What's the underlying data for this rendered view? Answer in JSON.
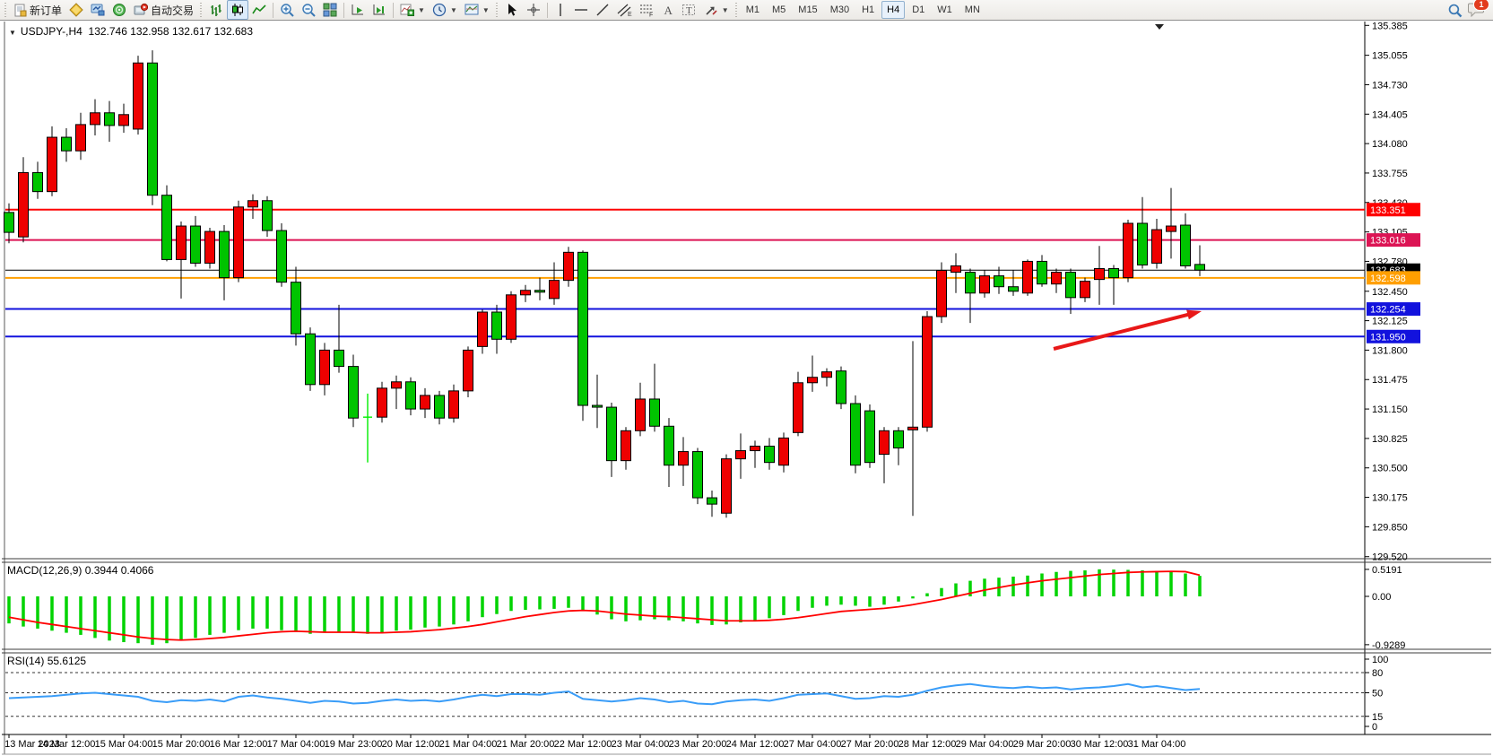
{
  "toolbar": {
    "new_order_label": "新订单",
    "auto_trading_label": "自动交易",
    "timeframes": [
      "M1",
      "M5",
      "M15",
      "M30",
      "H1",
      "H4",
      "D1",
      "W1",
      "MN"
    ],
    "active_timeframe": "H4",
    "notification_count": "1"
  },
  "chart": {
    "symbol_period": "USDJPY-,H4",
    "ohlc_text": "132.746 132.958 132.617 132.683",
    "price_ticks": [
      "135.385",
      "135.055",
      "134.730",
      "134.405",
      "134.080",
      "133.755",
      "133.430",
      "133.105",
      "132.780",
      "132.450",
      "132.125",
      "131.800",
      "131.475",
      "131.150",
      "130.825",
      "130.500",
      "130.175",
      "129.850",
      "129.520"
    ],
    "hlines": [
      {
        "price": 133.351,
        "badge": "133.351",
        "color": "#fe0000",
        "width": 2
      },
      {
        "price": 133.016,
        "badge": "133.016",
        "color": "#dc1454",
        "width": 2
      },
      {
        "price": 132.683,
        "badge": "132.683",
        "color": "#000000",
        "width": 1
      },
      {
        "price": 132.598,
        "badge": "132.598",
        "color": "#ff9f00",
        "width": 2
      },
      {
        "price": 132.254,
        "badge": "132.254",
        "color": "#1212dd",
        "width": 2
      },
      {
        "price": 131.95,
        "badge": "131.950",
        "color": "#1212dd",
        "width": 2
      }
    ],
    "annotations": [
      {
        "type": "arrow",
        "from": [
          1175,
          389
        ],
        "to": [
          1340,
          347
        ],
        "color": "#e81818"
      }
    ]
  },
  "chart_data": {
    "type": "candlestick",
    "symbol": "USDJPY-",
    "timeframe": "H4",
    "title": "USDJPY-,H4 132.746 132.958 132.617 132.683",
    "current_bar": {
      "open": 132.746,
      "high": 132.958,
      "low": 132.617,
      "close": 132.683
    },
    "y_range": [
      129.4,
      135.45
    ],
    "grid": false,
    "colors": {
      "bull": "#ee0000",
      "bear": "#00c400",
      "doji": "#00ee00",
      "macd_bar": "#00d300",
      "macd_signal": "#ff0000",
      "rsi_line": "#3a9df8"
    },
    "x_tick_every": 4,
    "x_tick_labels": [
      "13 Mar 2023",
      "14 Mar 12:00",
      "15 Mar 04:00",
      "15 Mar 20:00",
      "16 Mar 12:00",
      "17 Mar 04:00",
      "19 Mar 23:00",
      "20 Mar 12:00",
      "21 Mar 04:00",
      "21 Mar 20:00",
      "22 Mar 12:00",
      "23 Mar 04:00",
      "23 Mar 20:00",
      "24 Mar 12:00",
      "27 Mar 04:00",
      "27 Mar 20:00",
      "28 Mar 12:00",
      "29 Mar 04:00",
      "29 Mar 20:00",
      "30 Mar 12:00",
      "31 Mar 04:00"
    ],
    "doji_indices": [
      25
    ],
    "candles": [
      [
        133.32,
        133.42,
        132.98,
        133.1
      ],
      [
        133.05,
        133.93,
        132.99,
        133.76
      ],
      [
        133.76,
        133.88,
        133.47,
        133.55
      ],
      [
        133.55,
        134.27,
        133.5,
        134.15
      ],
      [
        134.15,
        134.25,
        133.88,
        134.0
      ],
      [
        134.0,
        134.42,
        133.9,
        134.29
      ],
      [
        134.29,
        134.57,
        134.17,
        134.42
      ],
      [
        134.42,
        134.55,
        134.1,
        134.28
      ],
      [
        134.28,
        134.52,
        134.2,
        134.4
      ],
      [
        134.24,
        135.05,
        134.18,
        134.97
      ],
      [
        134.97,
        135.11,
        133.4,
        133.51
      ],
      [
        133.51,
        133.62,
        132.78,
        132.8
      ],
      [
        132.8,
        133.22,
        132.37,
        133.17
      ],
      [
        133.17,
        133.28,
        132.72,
        132.76
      ],
      [
        132.76,
        133.15,
        132.7,
        133.11
      ],
      [
        133.11,
        133.18,
        132.35,
        132.6
      ],
      [
        132.6,
        133.45,
        132.55,
        133.38
      ],
      [
        133.38,
        133.52,
        133.25,
        133.45
      ],
      [
        133.45,
        133.5,
        133.05,
        133.12
      ],
      [
        133.12,
        133.2,
        132.5,
        132.55
      ],
      [
        132.55,
        132.72,
        131.85,
        131.98
      ],
      [
        131.98,
        132.05,
        131.35,
        131.42
      ],
      [
        131.42,
        131.88,
        131.3,
        131.8
      ],
      [
        131.8,
        132.3,
        131.55,
        131.62
      ],
      [
        131.62,
        131.75,
        130.95,
        131.05
      ],
      [
        131.05,
        131.32,
        130.56,
        131.06
      ],
      [
        131.06,
        131.45,
        131.0,
        131.38
      ],
      [
        131.38,
        131.52,
        131.15,
        131.45
      ],
      [
        131.45,
        131.5,
        131.08,
        131.15
      ],
      [
        131.15,
        131.38,
        131.05,
        131.3
      ],
      [
        131.3,
        131.35,
        130.98,
        131.05
      ],
      [
        131.05,
        131.42,
        131.0,
        131.35
      ],
      [
        131.35,
        131.84,
        131.28,
        131.8
      ],
      [
        131.84,
        132.25,
        131.76,
        132.22
      ],
      [
        132.22,
        132.3,
        131.76,
        131.92
      ],
      [
        131.92,
        132.45,
        131.88,
        132.41
      ],
      [
        132.41,
        132.52,
        132.33,
        132.46
      ],
      [
        132.46,
        132.6,
        132.35,
        132.44
      ],
      [
        132.37,
        132.77,
        132.3,
        132.57
      ],
      [
        132.57,
        132.94,
        132.5,
        132.88
      ],
      [
        132.88,
        132.9,
        131.02,
        131.19
      ],
      [
        131.19,
        131.53,
        130.94,
        131.17
      ],
      [
        131.17,
        131.22,
        130.4,
        130.58
      ],
      [
        130.58,
        130.95,
        130.48,
        130.91
      ],
      [
        130.91,
        131.44,
        130.85,
        131.26
      ],
      [
        131.26,
        131.65,
        130.9,
        130.96
      ],
      [
        130.96,
        131.05,
        130.29,
        130.53
      ],
      [
        130.53,
        130.84,
        130.3,
        130.68
      ],
      [
        130.68,
        130.72,
        130.1,
        130.17
      ],
      [
        130.17,
        130.25,
        129.96,
        130.1
      ],
      [
        130.0,
        130.65,
        129.95,
        130.6
      ],
      [
        130.6,
        130.88,
        130.38,
        130.69
      ],
      [
        130.69,
        130.8,
        130.5,
        130.74
      ],
      [
        130.74,
        130.83,
        130.48,
        130.56
      ],
      [
        130.53,
        130.89,
        130.45,
        130.83
      ],
      [
        130.89,
        131.56,
        130.85,
        131.44
      ],
      [
        131.44,
        131.74,
        131.34,
        131.5
      ],
      [
        131.5,
        131.6,
        131.4,
        131.56
      ],
      [
        131.57,
        131.62,
        131.15,
        131.21
      ],
      [
        131.21,
        131.3,
        130.44,
        130.53
      ],
      [
        131.13,
        131.2,
        130.5,
        130.56
      ],
      [
        130.65,
        130.95,
        130.33,
        130.91
      ],
      [
        130.91,
        130.95,
        130.53,
        130.72
      ],
      [
        130.92,
        131.9,
        129.97,
        130.95
      ],
      [
        130.95,
        132.23,
        130.9,
        132.17
      ],
      [
        132.17,
        132.77,
        132.1,
        132.68
      ],
      [
        132.66,
        132.87,
        132.43,
        132.73
      ],
      [
        132.66,
        132.7,
        132.1,
        132.43
      ],
      [
        132.43,
        132.68,
        132.38,
        132.62
      ],
      [
        132.62,
        132.72,
        132.42,
        132.5
      ],
      [
        132.5,
        132.68,
        132.4,
        132.45
      ],
      [
        132.43,
        132.8,
        132.4,
        132.78
      ],
      [
        132.78,
        132.85,
        132.5,
        132.53
      ],
      [
        132.53,
        132.7,
        132.43,
        132.66
      ],
      [
        132.66,
        132.7,
        132.2,
        132.38
      ],
      [
        132.38,
        132.6,
        132.33,
        132.56
      ],
      [
        132.58,
        132.95,
        132.3,
        132.7
      ],
      [
        132.7,
        132.74,
        132.3,
        132.6
      ],
      [
        132.6,
        133.24,
        132.55,
        133.2
      ],
      [
        133.2,
        133.49,
        132.7,
        132.74
      ],
      [
        132.76,
        133.25,
        132.7,
        133.13
      ],
      [
        133.11,
        133.59,
        132.81,
        133.17
      ],
      [
        133.18,
        133.31,
        132.7,
        132.73
      ],
      [
        132.746,
        132.958,
        132.617,
        132.683
      ]
    ],
    "indicators": {
      "macd": {
        "label": "MACD(12,26,9)",
        "display": "0.3944 0.4066",
        "axis_ticks": [
          "0.5191",
          "0.00",
          "-0.9289"
        ],
        "values": [
          -0.52,
          -0.58,
          -0.62,
          -0.66,
          -0.7,
          -0.74,
          -0.8,
          -0.85,
          -0.88,
          -0.9,
          -0.93,
          -0.9,
          -0.85,
          -0.8,
          -0.74,
          -0.7,
          -0.65,
          -0.62,
          -0.62,
          -0.65,
          -0.68,
          -0.72,
          -0.7,
          -0.68,
          -0.7,
          -0.72,
          -0.7,
          -0.66,
          -0.64,
          -0.6,
          -0.58,
          -0.54,
          -0.48,
          -0.4,
          -0.34,
          -0.28,
          -0.26,
          -0.25,
          -0.24,
          -0.22,
          -0.28,
          -0.35,
          -0.44,
          -0.48,
          -0.46,
          -0.44,
          -0.46,
          -0.48,
          -0.52,
          -0.55,
          -0.54,
          -0.5,
          -0.46,
          -0.42,
          -0.36,
          -0.28,
          -0.22,
          -0.18,
          -0.16,
          -0.18,
          -0.2,
          -0.16,
          -0.1,
          -0.04,
          0.06,
          0.16,
          0.25,
          0.3,
          0.34,
          0.36,
          0.38,
          0.4,
          0.44,
          0.47,
          0.49,
          0.5,
          0.52,
          0.515,
          0.51,
          0.5,
          0.49,
          0.47,
          0.44,
          0.3944
        ],
        "signal": [
          -0.4,
          -0.45,
          -0.5,
          -0.54,
          -0.58,
          -0.62,
          -0.66,
          -0.7,
          -0.74,
          -0.78,
          -0.81,
          -0.83,
          -0.84,
          -0.83,
          -0.81,
          -0.79,
          -0.76,
          -0.73,
          -0.7,
          -0.68,
          -0.67,
          -0.68,
          -0.69,
          -0.69,
          -0.69,
          -0.7,
          -0.7,
          -0.69,
          -0.68,
          -0.66,
          -0.64,
          -0.61,
          -0.58,
          -0.54,
          -0.49,
          -0.44,
          -0.39,
          -0.35,
          -0.31,
          -0.28,
          -0.27,
          -0.28,
          -0.31,
          -0.34,
          -0.36,
          -0.38,
          -0.39,
          -0.41,
          -0.43,
          -0.45,
          -0.47,
          -0.47,
          -0.47,
          -0.46,
          -0.44,
          -0.41,
          -0.37,
          -0.33,
          -0.29,
          -0.27,
          -0.25,
          -0.23,
          -0.2,
          -0.16,
          -0.11,
          -0.06,
          0.0,
          0.06,
          0.12,
          0.17,
          0.22,
          0.26,
          0.3,
          0.33,
          0.36,
          0.39,
          0.42,
          0.44,
          0.46,
          0.47,
          0.475,
          0.48,
          0.475,
          0.4066
        ]
      },
      "rsi": {
        "label": "RSI(14)",
        "display": "55.6125",
        "levels": [
          80,
          50,
          15
        ],
        "axis_ticks": [
          "100",
          "80",
          "50",
          "15",
          "0"
        ],
        "values": [
          42,
          43,
          44,
          45,
          47,
          49,
          50,
          48,
          46,
          44,
          38,
          36,
          39,
          38,
          40,
          37,
          44,
          46,
          43,
          41,
          38,
          35,
          38,
          37,
          34,
          35,
          38,
          40,
          38,
          39,
          37,
          40,
          44,
          47,
          45,
          48,
          48,
          47,
          50,
          52,
          41,
          39,
          37,
          39,
          42,
          40,
          36,
          38,
          34,
          33,
          37,
          39,
          40,
          38,
          42,
          47,
          48,
          49,
          45,
          41,
          42,
          45,
          44,
          47,
          53,
          58,
          61,
          63,
          60,
          58,
          57,
          59,
          57,
          58,
          55,
          57,
          58,
          60,
          63,
          58,
          60,
          57,
          54,
          55.6
        ]
      }
    }
  }
}
